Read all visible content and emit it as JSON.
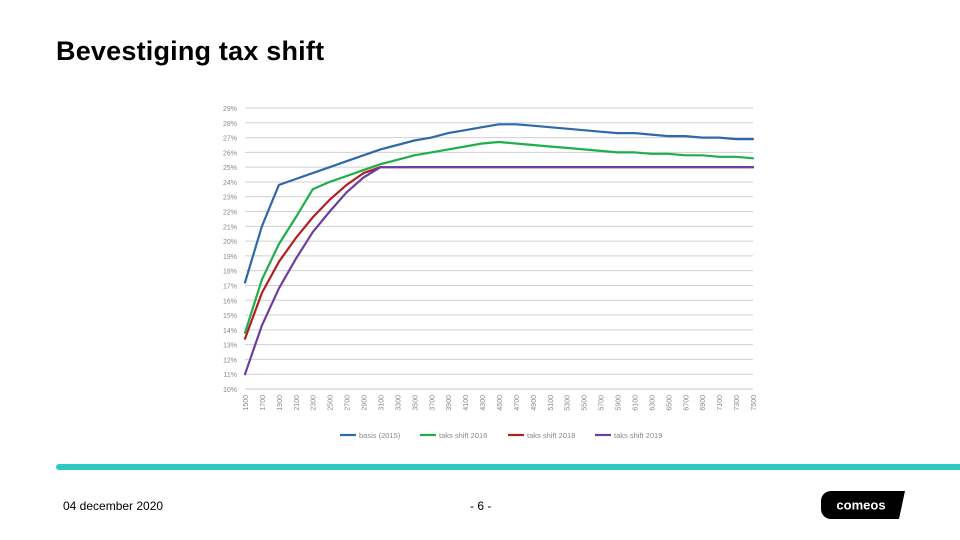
{
  "slide": {
    "title": "Bevestiging tax shift",
    "date": "04 december 2020",
    "page": "- 6 -",
    "logo_text": "comeos",
    "accent_color": "#2fc9c3"
  },
  "chart_data": {
    "type": "line",
    "title": "",
    "xlabel": "",
    "ylabel": "",
    "ylim": [
      10,
      29
    ],
    "y_ticks": [
      "29%",
      "28%",
      "27%",
      "26%",
      "25%",
      "24%",
      "23%",
      "22%",
      "21%",
      "20%",
      "19%",
      "18%",
      "17%",
      "16%",
      "15%",
      "14%",
      "13%",
      "12%",
      "11%",
      "10%"
    ],
    "categories": [
      "1500",
      "1700",
      "1900",
      "2100",
      "2300",
      "2500",
      "2700",
      "2900",
      "3100",
      "3300",
      "3500",
      "3700",
      "3900",
      "4100",
      "4300",
      "4500",
      "4700",
      "4900",
      "5100",
      "5300",
      "5500",
      "5700",
      "5900",
      "6100",
      "6300",
      "6500",
      "6700",
      "6900",
      "7100",
      "7300",
      "7500"
    ],
    "grid": true,
    "legend_position": "bottom",
    "series": [
      {
        "name": "basis (2015)",
        "color": "#2e6aa8",
        "values": [
          17.2,
          21.0,
          23.8,
          24.2,
          24.6,
          25.0,
          25.4,
          25.8,
          26.2,
          26.5,
          26.8,
          27.0,
          27.3,
          27.5,
          27.7,
          27.9,
          27.9,
          27.8,
          27.7,
          27.6,
          27.5,
          27.4,
          27.3,
          27.3,
          27.2,
          27.1,
          27.1,
          27.0,
          27.0,
          26.9,
          26.9
        ]
      },
      {
        "name": "taks shift 2016",
        "color": "#1fae4b",
        "values": [
          13.8,
          17.4,
          19.8,
          21.6,
          23.5,
          24.0,
          24.4,
          24.8,
          25.2,
          25.5,
          25.8,
          26.0,
          26.2,
          26.4,
          26.6,
          26.7,
          26.6,
          26.5,
          26.4,
          26.3,
          26.2,
          26.1,
          26.0,
          26.0,
          25.9,
          25.9,
          25.8,
          25.8,
          25.7,
          25.7,
          25.6
        ]
      },
      {
        "name": "taks shift 2018",
        "color": "#b41e23",
        "values": [
          13.4,
          16.5,
          18.6,
          20.2,
          21.6,
          22.8,
          23.8,
          24.6,
          25.0,
          25.0,
          25.0,
          25.0,
          25.0,
          25.0,
          25.0,
          25.0,
          25.0,
          25.0,
          25.0,
          25.0,
          25.0,
          25.0,
          25.0,
          25.0,
          25.0,
          25.0,
          25.0,
          25.0,
          25.0,
          25.0,
          25.0
        ]
      },
      {
        "name": "taks shift 2019",
        "color": "#6b3fa0",
        "values": [
          11.0,
          14.3,
          16.8,
          18.8,
          20.6,
          22.0,
          23.3,
          24.3,
          25.0,
          25.0,
          25.0,
          25.0,
          25.0,
          25.0,
          25.0,
          25.0,
          25.0,
          25.0,
          25.0,
          25.0,
          25.0,
          25.0,
          25.0,
          25.0,
          25.0,
          25.0,
          25.0,
          25.0,
          25.0,
          25.0,
          25.0
        ]
      }
    ]
  }
}
